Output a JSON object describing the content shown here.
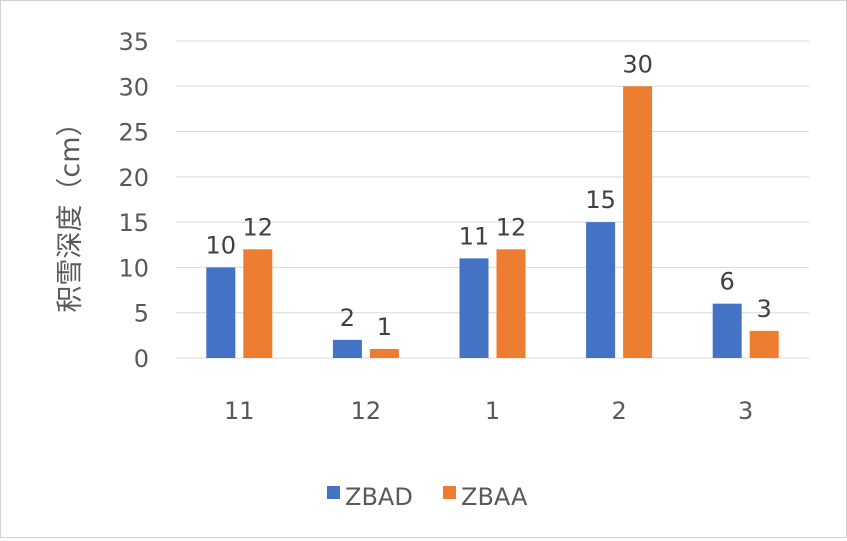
{
  "chart_data": {
    "type": "bar",
    "title": "",
    "xlabel": "",
    "ylabel": "积雪深度（cm）",
    "categories": [
      "11",
      "12",
      "1",
      "2",
      "3"
    ],
    "series": [
      {
        "name": "ZBAD",
        "color": "#4472C4",
        "values": [
          10,
          2,
          11,
          15,
          6
        ]
      },
      {
        "name": "ZBAA",
        "color": "#ED7D31",
        "values": [
          12,
          1,
          12,
          30,
          3
        ]
      }
    ],
    "ylim": [
      0,
      35
    ],
    "yticks": [
      "0",
      "5",
      "10",
      "15",
      "20",
      "25",
      "30",
      "35"
    ],
    "grid": true,
    "legend_position": "bottom"
  }
}
